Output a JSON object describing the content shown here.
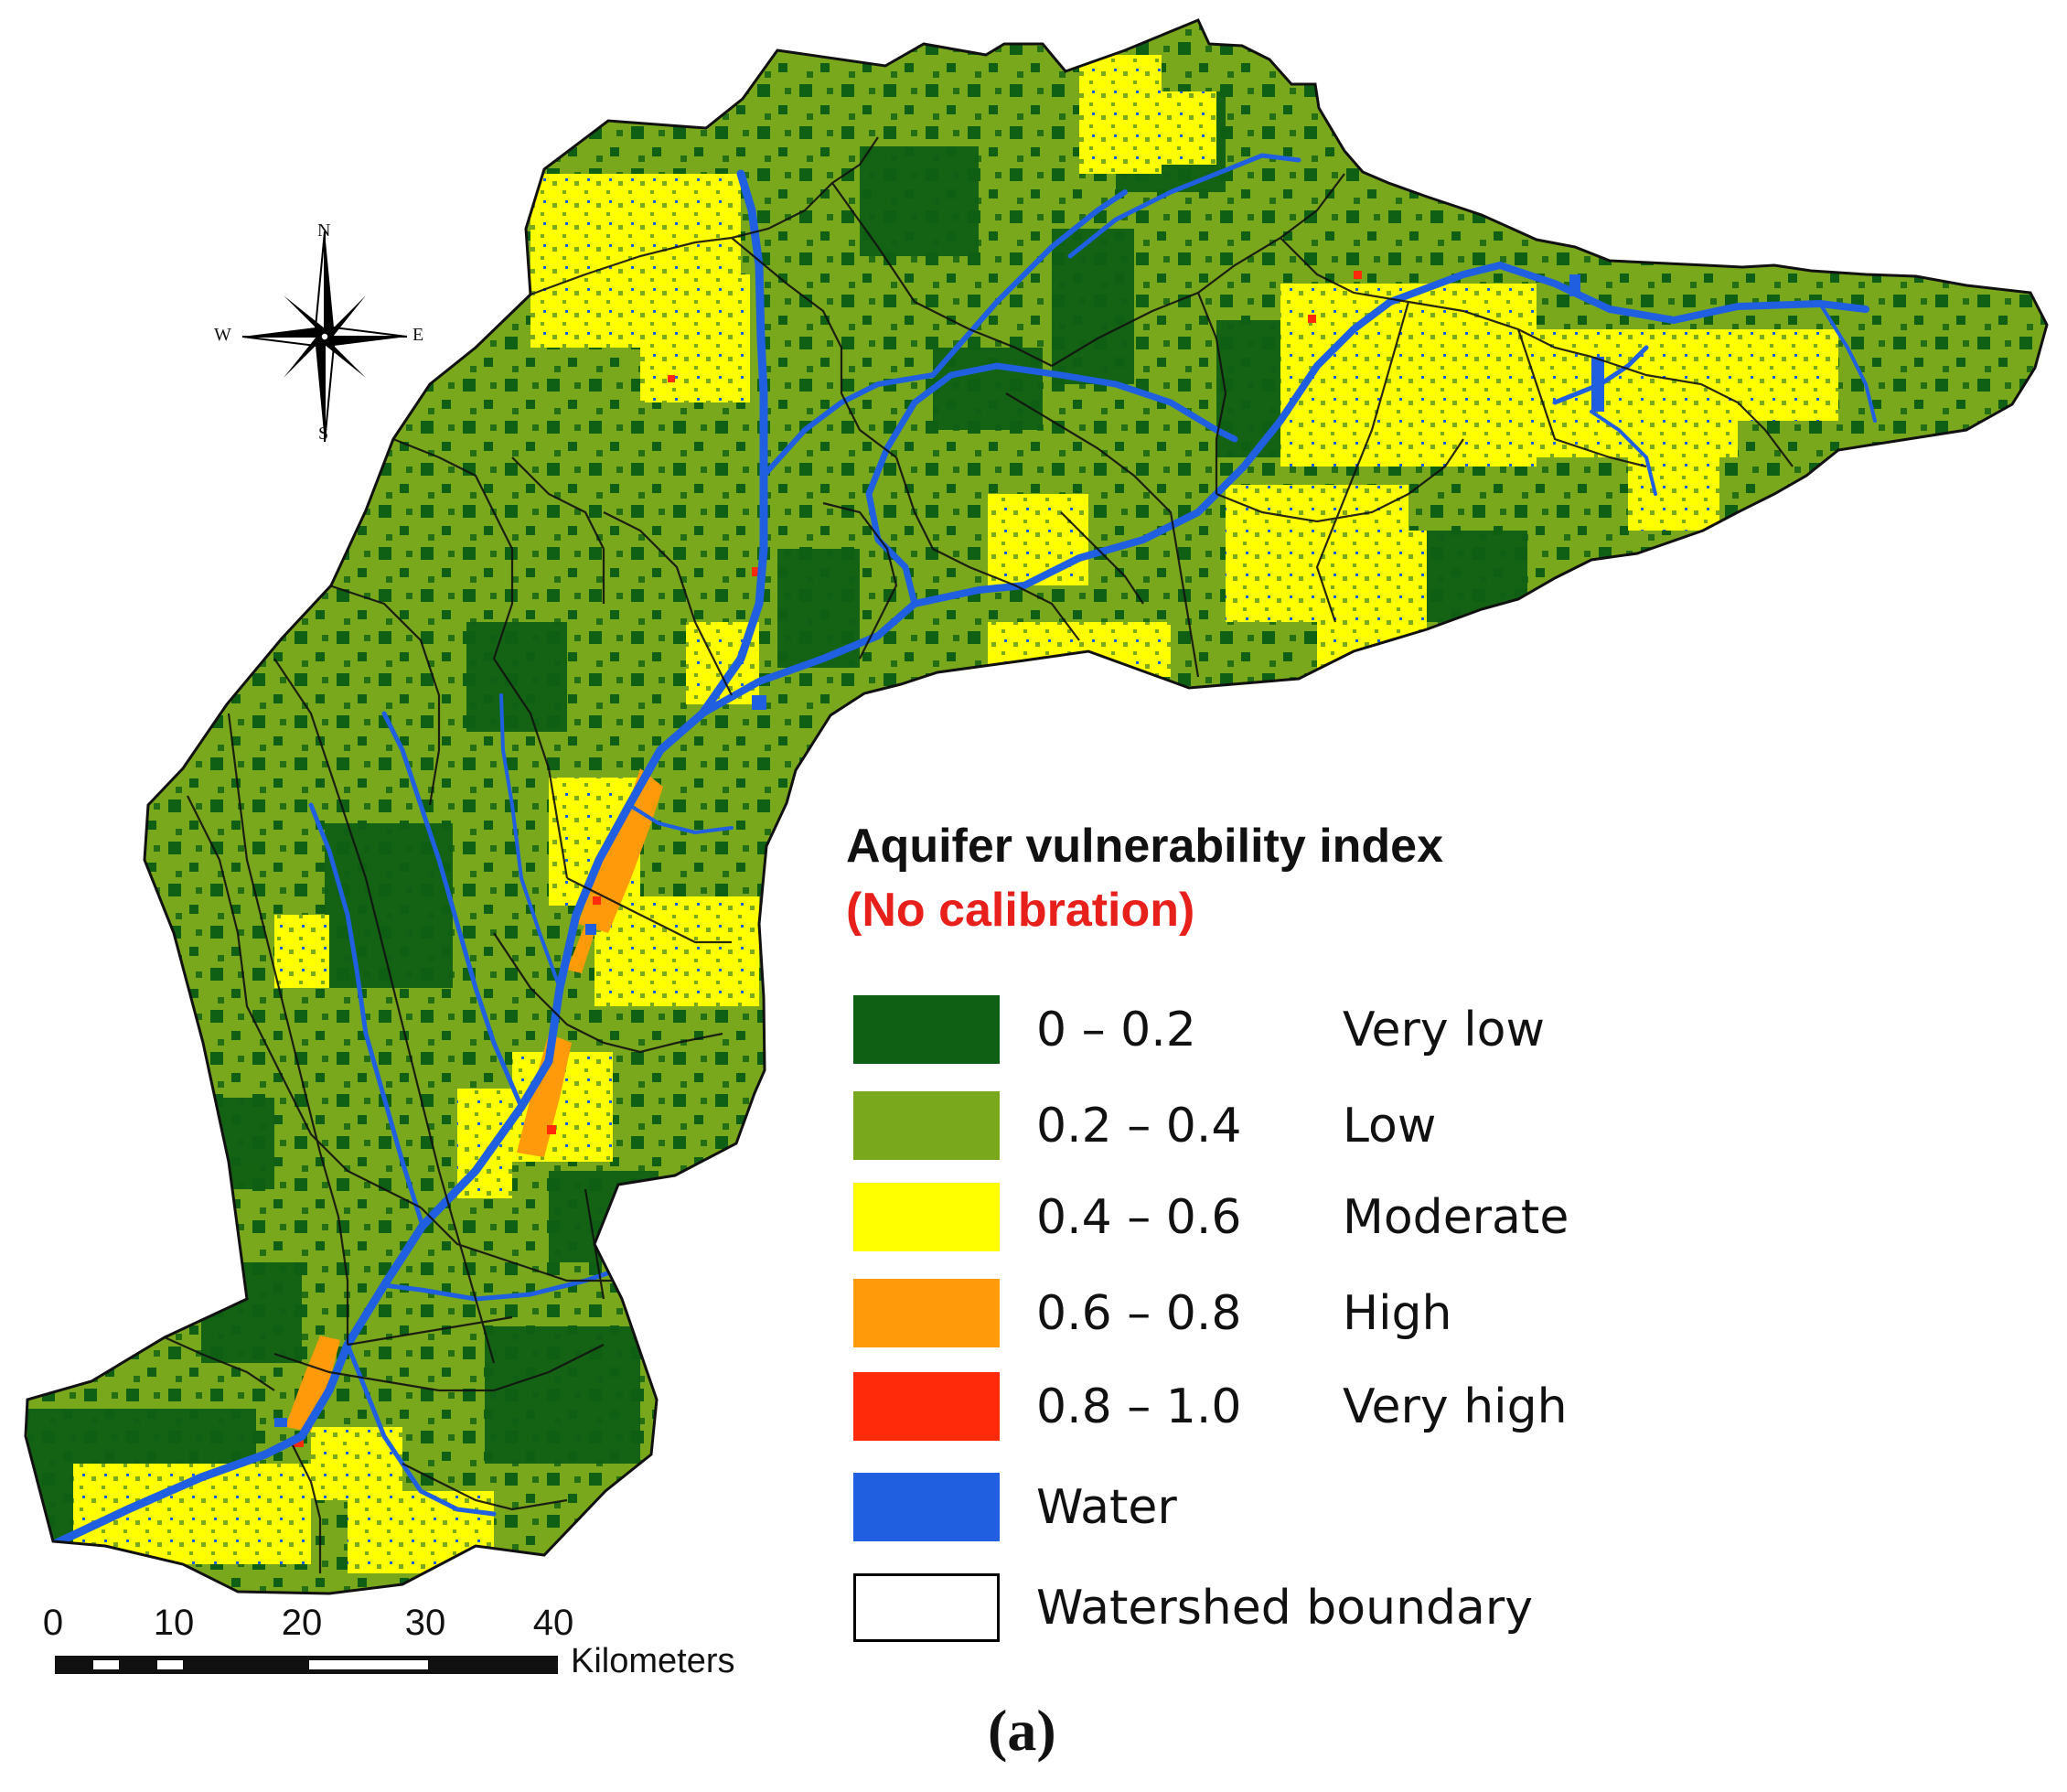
{
  "legend": {
    "title": "Aquifer vulnerability index",
    "subtitle": "(No calibration)",
    "subtitle_color": "#e8201c",
    "items": [
      {
        "range": "0 – 0.2",
        "label": "Very low",
        "color": "#0f5f14"
      },
      {
        "range": "0.2 – 0.4",
        "label": "Low",
        "color": "#7aa81c"
      },
      {
        "range": "0.4 – 0.6",
        "label": "Moderate",
        "color": "#ffff00"
      },
      {
        "range": "0.6 – 0.8",
        "label": "High",
        "color": "#ff9a0a"
      },
      {
        "range": "0.8 – 1.0",
        "label": "Very high",
        "color": "#ff2a0a"
      },
      {
        "range": "Water",
        "label": "",
        "color": "#1f5fe0"
      },
      {
        "range": "Watershed boundary",
        "label": "",
        "color": "#ffffff"
      }
    ]
  },
  "scale_bar": {
    "ticks": [
      "0",
      "10",
      "20",
      "30",
      "40"
    ],
    "unit": "Kilometers"
  },
  "compass": {
    "n": "N",
    "s": "S",
    "e": "E",
    "w": "W"
  },
  "figure_label": "(a)"
}
